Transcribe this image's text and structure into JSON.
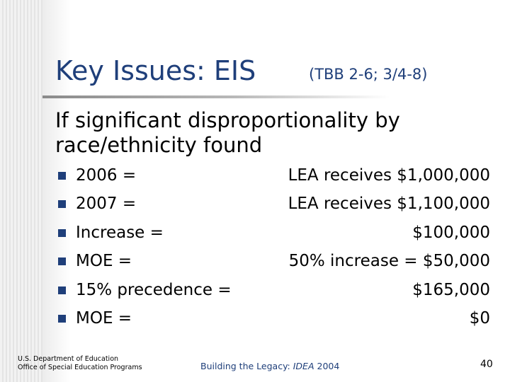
{
  "slide": {
    "title": "Key Issues: EIS",
    "subtitle": "(TBB 2-6; 3/4-8)",
    "intro": "If significant disproportionality by race/ethnicity found",
    "bullets": [
      {
        "label": "2006 =",
        "value": "LEA receives $1,000,000"
      },
      {
        "label": "2007 =",
        "value": "LEA receives $1,100,000"
      },
      {
        "label": "Increase =",
        "value": "$100,000"
      },
      {
        "label": "MOE =",
        "value": "50% increase = $50,000"
      },
      {
        "label": "15% precedence =",
        "value": "$165,000"
      },
      {
        "label": "MOE =",
        "value": "$0"
      }
    ]
  },
  "footer": {
    "dept_line1": "U.S. Department of Education",
    "dept_line2": "Office of Special Education Programs",
    "center_prefix": "Building the Legacy: ",
    "center_idea": "IDEA",
    "center_suffix": " 2004",
    "page_number": "40"
  },
  "colors": {
    "title": "#1f3f7a",
    "bullet": "#1f3f7a",
    "body_text": "#000000"
  }
}
